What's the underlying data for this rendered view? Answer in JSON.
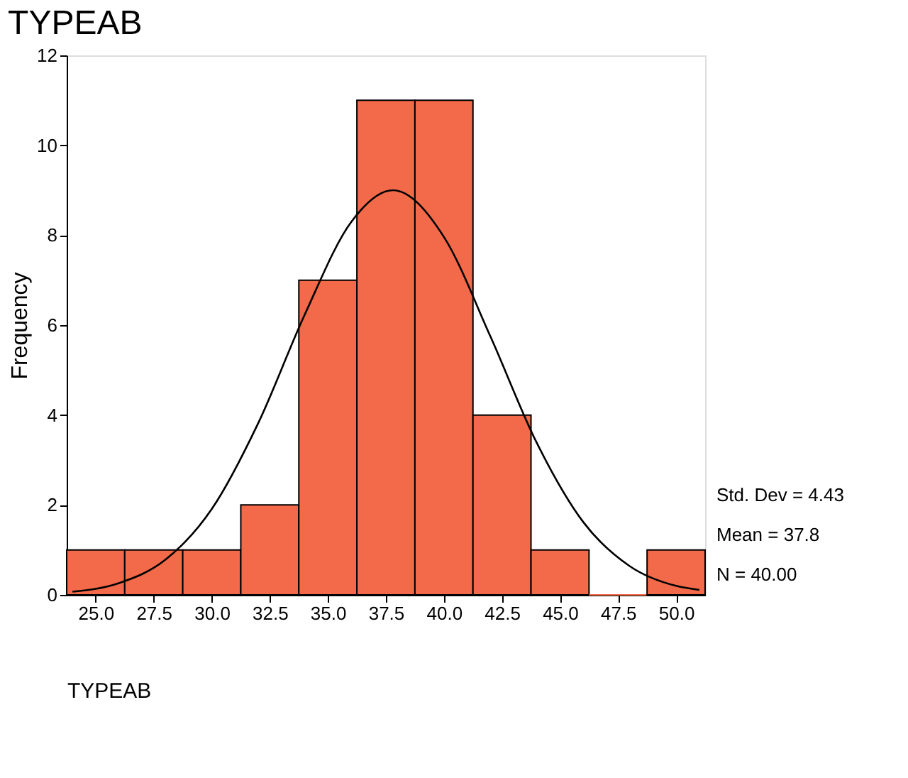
{
  "chart_data": {
    "type": "histogram",
    "title": "TYPEAB",
    "xlabel": "TYPEAB",
    "ylabel": "Frequency",
    "bins": [
      23.75,
      26.25,
      28.75,
      31.25,
      33.75,
      36.25,
      38.75,
      41.25,
      43.75,
      46.25,
      48.75,
      51.25
    ],
    "values": [
      1,
      1,
      1,
      2,
      7,
      11,
      11,
      4,
      1,
      0,
      1
    ],
    "color": "#f26a4a",
    "xlim": [
      23.75,
      51.25
    ],
    "xticks": [
      {
        "value": 25,
        "label": "25.0"
      },
      {
        "value": 27.5,
        "label": "27.5"
      },
      {
        "value": 30,
        "label": "30.0"
      },
      {
        "value": 32.5,
        "label": "32.5"
      },
      {
        "value": 35,
        "label": "35.0"
      },
      {
        "value": 37.5,
        "label": "37.5"
      },
      {
        "value": 40,
        "label": "40.0"
      },
      {
        "value": 42.5,
        "label": "42.5"
      },
      {
        "value": 45,
        "label": "45.0"
      },
      {
        "value": 47.5,
        "label": "47.5"
      },
      {
        "value": 50,
        "label": "50.0"
      }
    ],
    "ylim": [
      0,
      12
    ],
    "yticks": [
      0,
      2,
      4,
      6,
      8,
      10,
      12
    ],
    "grid": false,
    "annotations": [
      "Std. Dev = 4.43",
      "Mean = 37.8",
      "N = 40.00"
    ],
    "series": [
      {
        "type": "line",
        "color": "#000000",
        "x": [
          24,
          26,
          28,
          30,
          32,
          34,
          36,
          37.8,
          40,
          42,
          44,
          46,
          48,
          50,
          51
        ],
        "values": [
          0.07,
          0.26,
          0.78,
          1.91,
          3.82,
          6.23,
          8.29,
          9.0,
          7.96,
          5.75,
          3.38,
          1.62,
          0.64,
          0.2,
          0.11
        ]
      }
    ]
  }
}
